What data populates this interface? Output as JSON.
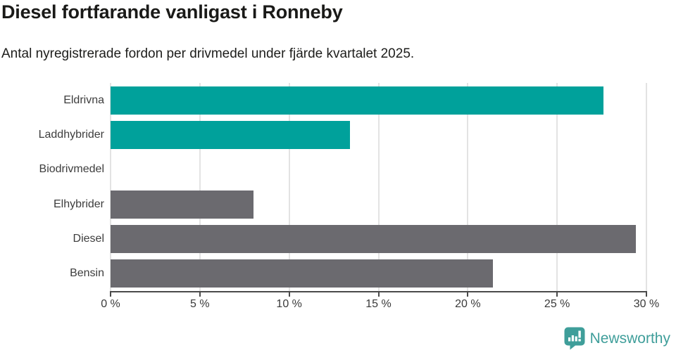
{
  "title": "Diesel fortfarande vanligast i Ronneby",
  "subtitle": "Antal nyregistrerade fordon per drivmedel under fjärde kvartalet 2025.",
  "chart_data": {
    "type": "bar",
    "orientation": "horizontal",
    "title": "Diesel fortfarande vanligast i Ronneby",
    "subtitle": "Antal nyregistrerade fordon per drivmedel under fjärde kvartalet 2025.",
    "categories": [
      "Eldrivna",
      "Laddhybrider",
      "Biodrivmedel",
      "Elhybrider",
      "Diesel",
      "Bensin"
    ],
    "values": [
      27.6,
      13.4,
      0,
      8.0,
      29.4,
      21.4
    ],
    "bar_colors": [
      "#00a19b",
      "#00a19b",
      "#00a19b",
      "#6b6a6f",
      "#6b6a6f",
      "#6b6a6f"
    ],
    "xlabel": "",
    "ylabel": "",
    "xlim": [
      0,
      30
    ],
    "x_tick_values": [
      0,
      5,
      10,
      15,
      20,
      25,
      30
    ],
    "x_tick_labels": [
      "0 %",
      "5 %",
      "10 %",
      "15 %",
      "20 %",
      "25 %",
      "30 %"
    ],
    "grid": true,
    "unit": "%"
  },
  "colors": {
    "bar_teal": "#00a19b",
    "bar_gray": "#6b6a6f",
    "gridline": "#e3e3e3",
    "axis": "#4a4a4a",
    "title_text": "#1a1a18",
    "label_text": "#3d3d3d",
    "brand_teal": "#3f9e9a"
  },
  "footer": {
    "brand": "Newsworthy",
    "logo_icon": "newsworthy-chart-bubble-icon"
  }
}
